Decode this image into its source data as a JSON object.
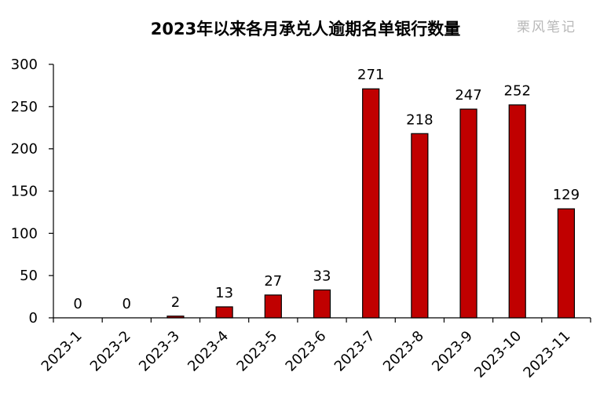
{
  "chart_data": {
    "type": "bar",
    "title": "2023年以来各月承兑人逾期名单银行数量",
    "watermark": "栗风笔记",
    "xlabel": "",
    "ylabel": "",
    "categories": [
      "2023-1",
      "2023-2",
      "2023-3",
      "2023-4",
      "2023-5",
      "2023-6",
      "2023-7",
      "2023-8",
      "2023-9",
      "2023-10",
      "2023-11"
    ],
    "values": [
      0,
      0,
      2,
      13,
      27,
      33,
      271,
      218,
      247,
      252,
      129
    ],
    "ylim": [
      0,
      300
    ],
    "yticks": [
      0,
      50,
      100,
      150,
      200,
      250,
      300
    ],
    "data_labels": true,
    "grid": false,
    "legend": "none",
    "bar_color": "#C00000",
    "bar_edge_color": "#000000"
  }
}
